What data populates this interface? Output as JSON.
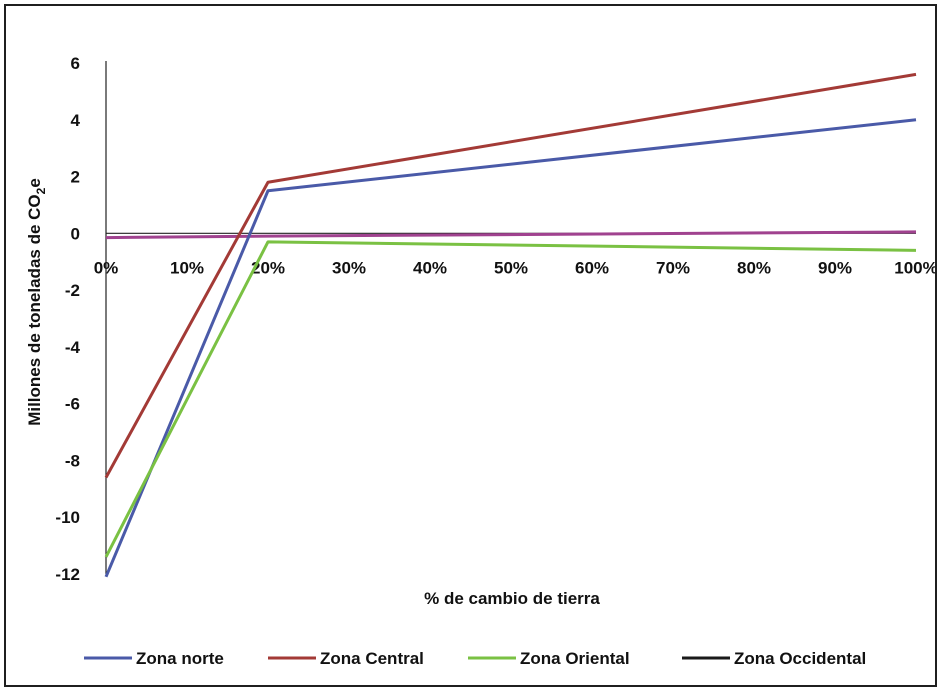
{
  "chart_data": {
    "type": "line",
    "title": "",
    "xlabel": "% de cambio de tierra",
    "ylabel": "Millones de toneladas de CO",
    "ylabel_sub": "2",
    "ylabel_suffix": "e",
    "x": [
      0,
      20,
      100
    ],
    "x_ticks": [
      "0%",
      "10%",
      "20%",
      "30%",
      "40%",
      "50%",
      "60%",
      "70%",
      "80%",
      "90%",
      "100%"
    ],
    "x_tick_values": [
      0,
      10,
      20,
      30,
      40,
      50,
      60,
      70,
      80,
      90,
      100
    ],
    "y_ticks": [
      "6",
      "4",
      "2",
      "0",
      "-2",
      "-4",
      "-6",
      "-8",
      "-10",
      "-12"
    ],
    "y_tick_values": [
      6,
      4,
      2,
      0,
      -2,
      -4,
      -6,
      -8,
      -10,
      -12
    ],
    "xlim": [
      0,
      100
    ],
    "ylim": [
      -12,
      6
    ],
    "grid": false,
    "legend_position": "bottom",
    "series": [
      {
        "name": "Zona norte",
        "color": "#4a5aa8",
        "values": [
          -12.1,
          1.5,
          4.0
        ]
      },
      {
        "name": "Zona Central",
        "color": "#a33a36",
        "values": [
          -8.6,
          1.8,
          5.6
        ]
      },
      {
        "name": "Zona Oriental",
        "color": "#7ac143",
        "values": [
          -11.4,
          -0.3,
          -0.6
        ]
      },
      {
        "name": "Zona Occidental",
        "color": "#1a1a1a",
        "values": [
          -0.15,
          -0.1,
          0.05
        ]
      }
    ],
    "extra_lines": [
      {
        "color": "#a0428f",
        "values": [
          -0.15,
          -0.1,
          0.05
        ]
      }
    ]
  }
}
